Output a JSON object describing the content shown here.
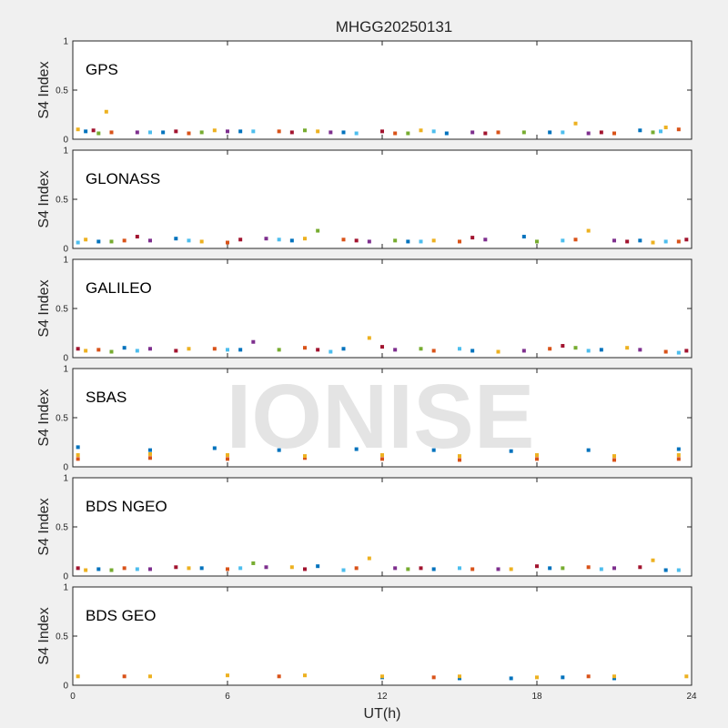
{
  "colors": {
    "background": "#f0f0f0",
    "axes_bg": "#ffffff",
    "axis_line": "#262626",
    "series": [
      "#0072BD",
      "#D95319",
      "#EDB120",
      "#7E2F8E",
      "#77AC30",
      "#4DBEEE",
      "#A2142F"
    ]
  },
  "chart_data": {
    "type": "scatter",
    "title": "MHGG20250131",
    "xlabel": "UT(h)",
    "xlim": [
      0,
      24
    ],
    "xticks": [
      0,
      6,
      12,
      18,
      24
    ],
    "xtick_labels": [
      "0",
      "6",
      "12",
      "18",
      "24"
    ],
    "watermark": "IONISE",
    "panels": [
      {
        "label": "GPS",
        "ylabel": "S4 Index",
        "ylim": [
          0,
          1
        ],
        "yticks": [
          0,
          0.5,
          1
        ],
        "ytick_labels": [
          "0",
          "0.5",
          "1"
        ],
        "series": [
          {
            "color_index": 0,
            "x": [
              0.5,
              3.5,
              6.5,
              10.5,
              14.5,
              18.5,
              22.0
            ],
            "values": [
              0.08,
              0.07,
              0.08,
              0.07,
              0.06,
              0.07,
              0.09
            ]
          },
          {
            "color_index": 1,
            "x": [
              1.5,
              4.5,
              8.0,
              12.5,
              16.5,
              21.0,
              23.5
            ],
            "values": [
              0.07,
              0.06,
              0.08,
              0.06,
              0.07,
              0.06,
              0.1
            ]
          },
          {
            "color_index": 2,
            "x": [
              0.2,
              1.3,
              5.5,
              9.5,
              13.5,
              19.5,
              23.0
            ],
            "values": [
              0.1,
              0.28,
              0.09,
              0.08,
              0.09,
              0.16,
              0.12
            ]
          },
          {
            "color_index": 3,
            "x": [
              2.5,
              6.0,
              10.0,
              15.5,
              20.0
            ],
            "values": [
              0.07,
              0.08,
              0.07,
              0.07,
              0.06
            ]
          },
          {
            "color_index": 4,
            "x": [
              1.0,
              5.0,
              9.0,
              13.0,
              17.5,
              22.5
            ],
            "values": [
              0.06,
              0.07,
              0.09,
              0.06,
              0.07,
              0.07
            ]
          },
          {
            "color_index": 5,
            "x": [
              3.0,
              7.0,
              11.0,
              14.0,
              19.0,
              22.8
            ],
            "values": [
              0.07,
              0.08,
              0.06,
              0.08,
              0.07,
              0.08
            ]
          },
          {
            "color_index": 6,
            "x": [
              0.8,
              4.0,
              8.5,
              12.0,
              16.0,
              20.5
            ],
            "values": [
              0.09,
              0.08,
              0.07,
              0.08,
              0.06,
              0.07
            ]
          }
        ]
      },
      {
        "label": "GLONASS",
        "ylabel": "S4 Index",
        "ylim": [
          0,
          1
        ],
        "yticks": [
          0,
          0.5,
          1
        ],
        "ytick_labels": [
          "0",
          "0.5",
          "1"
        ],
        "series": [
          {
            "color_index": 0,
            "x": [
              1.0,
              4.0,
              8.5,
              13.0,
              17.5,
              22.0
            ],
            "values": [
              0.07,
              0.1,
              0.08,
              0.07,
              0.12,
              0.08
            ]
          },
          {
            "color_index": 1,
            "x": [
              2.0,
              6.0,
              10.5,
              15.0,
              19.5,
              23.5
            ],
            "values": [
              0.08,
              0.06,
              0.09,
              0.07,
              0.09,
              0.07
            ]
          },
          {
            "color_index": 2,
            "x": [
              0.5,
              5.0,
              9.0,
              14.0,
              20.0,
              22.5
            ],
            "values": [
              0.09,
              0.07,
              0.1,
              0.08,
              0.18,
              0.06
            ]
          },
          {
            "color_index": 3,
            "x": [
              3.0,
              7.5,
              11.5,
              16.0,
              21.0
            ],
            "values": [
              0.08,
              0.1,
              0.07,
              0.09,
              0.08
            ]
          },
          {
            "color_index": 4,
            "x": [
              1.5,
              9.5,
              12.5,
              18.0
            ],
            "values": [
              0.07,
              0.18,
              0.08,
              0.07
            ]
          },
          {
            "color_index": 5,
            "x": [
              0.2,
              4.5,
              8.0,
              13.5,
              19.0,
              23.0
            ],
            "values": [
              0.06,
              0.08,
              0.09,
              0.07,
              0.08,
              0.07
            ]
          },
          {
            "color_index": 6,
            "x": [
              2.5,
              6.5,
              11.0,
              15.5,
              21.5,
              23.8
            ],
            "values": [
              0.12,
              0.09,
              0.08,
              0.11,
              0.07,
              0.09
            ]
          }
        ]
      },
      {
        "label": "GALILEO",
        "ylabel": "S4 Index",
        "ylim": [
          0,
          1
        ],
        "yticks": [
          0,
          0.5,
          1
        ],
        "ytick_labels": [
          "0",
          "0.5",
          "1"
        ],
        "series": [
          {
            "color_index": 0,
            "x": [
              2.0,
              6.5,
              10.5,
              15.5,
              20.5
            ],
            "values": [
              0.1,
              0.08,
              0.09,
              0.07,
              0.08
            ]
          },
          {
            "color_index": 1,
            "x": [
              1.0,
              5.5,
              9.0,
              14.0,
              18.5,
              23.0
            ],
            "values": [
              0.08,
              0.09,
              0.1,
              0.07,
              0.09,
              0.06
            ]
          },
          {
            "color_index": 2,
            "x": [
              0.5,
              4.5,
              11.5,
              16.5,
              21.5
            ],
            "values": [
              0.07,
              0.09,
              0.2,
              0.06,
              0.1
            ]
          },
          {
            "color_index": 3,
            "x": [
              3.0,
              7.0,
              12.5,
              17.5,
              22.0
            ],
            "values": [
              0.09,
              0.16,
              0.08,
              0.07,
              0.08
            ]
          },
          {
            "color_index": 4,
            "x": [
              1.5,
              8.0,
              13.5,
              19.5
            ],
            "values": [
              0.06,
              0.08,
              0.09,
              0.1
            ]
          },
          {
            "color_index": 5,
            "x": [
              2.5,
              6.0,
              10.0,
              15.0,
              20.0,
              23.5
            ],
            "values": [
              0.07,
              0.08,
              0.06,
              0.09,
              0.07,
              0.05
            ]
          },
          {
            "color_index": 6,
            "x": [
              0.2,
              4.0,
              9.5,
              12.0,
              19.0,
              23.8
            ],
            "values": [
              0.09,
              0.07,
              0.08,
              0.11,
              0.12,
              0.07
            ]
          }
        ]
      },
      {
        "label": "SBAS",
        "ylabel": "S4 Index",
        "ylim": [
          0,
          1
        ],
        "yticks": [
          0,
          0.5,
          1
        ],
        "ytick_labels": [
          "0",
          "0.5",
          "1"
        ],
        "series": [
          {
            "color_index": 0,
            "x": [
              0.2,
              3.0,
              5.5,
              8.0,
              11.0,
              14.0,
              17.0,
              20.0,
              23.5
            ],
            "values": [
              0.2,
              0.17,
              0.19,
              0.17,
              0.18,
              0.17,
              0.16,
              0.17,
              0.18
            ]
          },
          {
            "color_index": 1,
            "x": [
              0.2,
              3.0,
              6.0,
              9.0,
              12.0,
              15.0,
              18.0,
              21.0,
              23.5
            ],
            "values": [
              0.08,
              0.09,
              0.08,
              0.09,
              0.08,
              0.07,
              0.08,
              0.07,
              0.08
            ]
          },
          {
            "color_index": 2,
            "x": [
              0.2,
              3.0,
              6.0,
              9.0,
              12.0,
              15.0,
              18.0,
              21.0,
              23.5
            ],
            "values": [
              0.12,
              0.13,
              0.12,
              0.11,
              0.12,
              0.11,
              0.12,
              0.11,
              0.12
            ]
          }
        ]
      },
      {
        "label": "BDS NGEO",
        "ylabel": "S4 Index",
        "ylim": [
          0,
          1
        ],
        "yticks": [
          0,
          0.5,
          1
        ],
        "ytick_labels": [
          "0",
          "0.5",
          "1"
        ],
        "series": [
          {
            "color_index": 0,
            "x": [
              1.0,
              5.0,
              9.5,
              14.0,
              18.5,
              23.0
            ],
            "values": [
              0.07,
              0.08,
              0.1,
              0.07,
              0.08,
              0.06
            ]
          },
          {
            "color_index": 1,
            "x": [
              2.0,
              6.0,
              11.0,
              15.5,
              20.0
            ],
            "values": [
              0.08,
              0.07,
              0.08,
              0.07,
              0.09
            ]
          },
          {
            "color_index": 2,
            "x": [
              0.5,
              4.5,
              8.5,
              11.5,
              17.0,
              22.5
            ],
            "values": [
              0.06,
              0.08,
              0.09,
              0.18,
              0.07,
              0.16
            ]
          },
          {
            "color_index": 3,
            "x": [
              3.0,
              7.5,
              12.5,
              16.5,
              21.0
            ],
            "values": [
              0.07,
              0.09,
              0.08,
              0.07,
              0.08
            ]
          },
          {
            "color_index": 4,
            "x": [
              1.5,
              7.0,
              13.0,
              19.0
            ],
            "values": [
              0.06,
              0.13,
              0.07,
              0.08
            ]
          },
          {
            "color_index": 5,
            "x": [
              2.5,
              6.5,
              10.5,
              15.0,
              20.5,
              23.5
            ],
            "values": [
              0.07,
              0.08,
              0.06,
              0.08,
              0.07,
              0.06
            ]
          },
          {
            "color_index": 6,
            "x": [
              0.2,
              4.0,
              9.0,
              13.5,
              18.0,
              22.0
            ],
            "values": [
              0.08,
              0.09,
              0.07,
              0.08,
              0.1,
              0.09
            ]
          }
        ]
      },
      {
        "label": "BDS GEO",
        "ylabel": "S4 Index",
        "ylim": [
          0,
          1
        ],
        "yticks": [
          0,
          0.5,
          1
        ],
        "ytick_labels": [
          "0",
          "0.5",
          "1"
        ],
        "series": [
          {
            "color_index": 0,
            "x": [
              12.0,
              15.0,
              17.0,
              19.0,
              21.0
            ],
            "values": [
              0.08,
              0.07,
              0.07,
              0.08,
              0.07
            ]
          },
          {
            "color_index": 1,
            "x": [
              2.0,
              8.0,
              14.0,
              20.0
            ],
            "values": [
              0.09,
              0.09,
              0.08,
              0.09
            ]
          },
          {
            "color_index": 2,
            "x": [
              0.2,
              3.0,
              6.0,
              9.0,
              12.0,
              15.0,
              18.0,
              21.0,
              23.8
            ],
            "values": [
              0.09,
              0.09,
              0.1,
              0.1,
              0.09,
              0.09,
              0.08,
              0.09,
              0.09
            ]
          }
        ]
      }
    ]
  }
}
